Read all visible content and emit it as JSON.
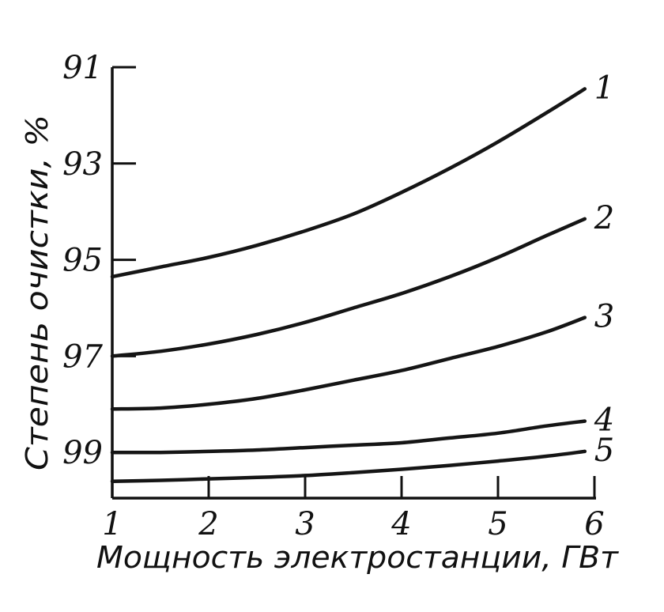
{
  "chart_data": {
    "type": "line",
    "xlabel": "Мощность электростанции, ГВт",
    "ylabel": "Степень очистки, %",
    "x_ticks": [
      1,
      2,
      3,
      4,
      5,
      6
    ],
    "y_ticks": [
      91,
      93,
      95,
      97,
      99
    ],
    "xlim": [
      1,
      6
    ],
    "ylim": [
      91,
      99.95
    ],
    "y_inverted": true,
    "grid": false,
    "legend": "inline labels at line ends",
    "series": [
      {
        "name": "1",
        "x": [
          1,
          1.5,
          2,
          2.5,
          3,
          3.5,
          4,
          4.5,
          5,
          5.5,
          5.9
        ],
        "y": [
          95.35,
          95.15,
          94.95,
          94.7,
          94.4,
          94.05,
          93.6,
          93.1,
          92.55,
          91.95,
          91.45
        ]
      },
      {
        "name": "2",
        "x": [
          1,
          1.5,
          2,
          2.5,
          3,
          3.5,
          4,
          4.5,
          5,
          5.5,
          5.9
        ],
        "y": [
          97.0,
          96.9,
          96.75,
          96.55,
          96.3,
          96.0,
          95.7,
          95.35,
          94.95,
          94.5,
          94.15
        ]
      },
      {
        "name": "3",
        "x": [
          1,
          1.5,
          2,
          2.5,
          3,
          3.5,
          4,
          4.5,
          5,
          5.5,
          5.9
        ],
        "y": [
          98.1,
          98.08,
          98.0,
          97.88,
          97.7,
          97.5,
          97.3,
          97.05,
          96.8,
          96.5,
          96.2
        ]
      },
      {
        "name": "4",
        "x": [
          1,
          1.5,
          2,
          2.5,
          3,
          3.5,
          4,
          4.5,
          5,
          5.5,
          5.9
        ],
        "y": [
          99.0,
          99.0,
          98.98,
          98.95,
          98.9,
          98.85,
          98.8,
          98.7,
          98.6,
          98.45,
          98.35
        ]
      },
      {
        "name": "5",
        "x": [
          1,
          1.5,
          2,
          2.5,
          3,
          3.5,
          4,
          4.5,
          5,
          5.5,
          5.9
        ],
        "y": [
          99.6,
          99.58,
          99.55,
          99.52,
          99.48,
          99.42,
          99.35,
          99.27,
          99.18,
          99.08,
          98.98
        ]
      }
    ]
  }
}
